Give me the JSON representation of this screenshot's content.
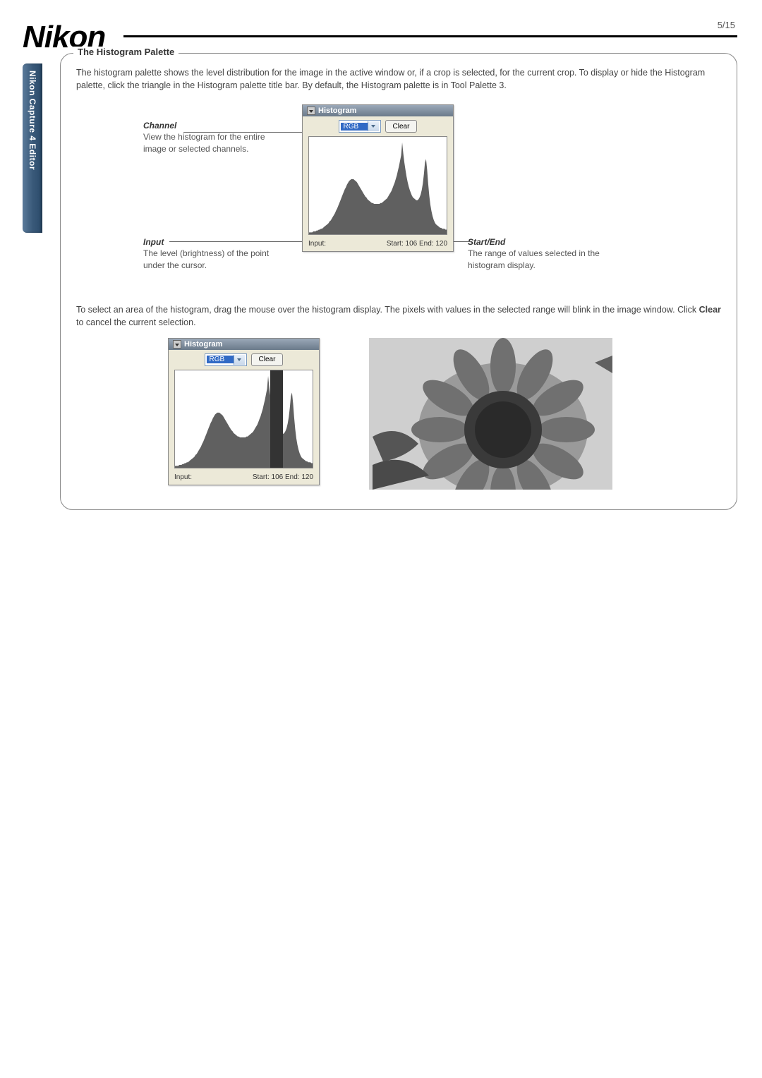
{
  "page": {
    "logo": "Nikon",
    "number": "5/15",
    "sideTab": "Nikon Capture 4 Editor"
  },
  "box": {
    "title": "The Histogram Palette",
    "intro": "The histogram palette shows the level distribution for the image in the active window or, if a crop is selected, for the current crop. To display or hide the Histogram palette, click the triangle in the Histogram palette title bar.  By default, the Histogram palette is in Tool Palette 3.",
    "channel": {
      "title": "Channel",
      "body": "View the histogram for the entire image or selected channels."
    },
    "input": {
      "title": "Input",
      "body": "The level (brightness) of the point under the cursor."
    },
    "startend": {
      "title": "Start/End",
      "body": "The range of values selected in the histogram display."
    },
    "para2": "To select an area of the histogram, drag the mouse over the histogram display.  The pixels with values in the selected range will blink in the image window.  Click ",
    "para2bold": "Clear",
    "para2tail": " to cancel the current selection."
  },
  "histWin": {
    "title": "Histogram",
    "channel": "RGB",
    "clear": "Clear",
    "status": {
      "input": "Input:",
      "range": "Start: 106   End: 120"
    }
  },
  "hist": {
    "bg": "#ffffff",
    "fill": "#606060",
    "values": [
      2,
      2,
      2,
      2,
      3,
      3,
      3,
      4,
      4,
      5,
      5,
      6,
      6,
      7,
      8,
      9,
      10,
      11,
      12,
      14,
      15,
      17,
      19,
      21,
      23,
      26,
      28,
      31,
      34,
      37,
      40,
      43,
      46,
      49,
      51,
      54,
      56,
      58,
      59,
      60,
      60,
      60,
      59,
      58,
      57,
      55,
      53,
      51,
      49,
      47,
      45,
      43,
      41,
      40,
      38,
      37,
      36,
      35,
      34,
      34,
      33,
      33,
      33,
      33,
      33,
      33,
      34,
      34,
      35,
      36,
      37,
      38,
      39,
      41,
      43,
      45,
      47,
      50,
      53,
      56,
      60,
      64,
      69,
      74,
      80,
      86,
      100,
      88,
      78,
      70,
      63,
      57,
      52,
      48,
      45,
      42,
      40,
      39,
      38,
      37,
      37,
      38,
      40,
      43,
      48,
      55,
      65,
      78,
      82,
      70,
      55,
      42,
      32,
      25,
      20,
      16,
      13,
      11,
      10,
      9,
      8,
      7,
      7,
      6,
      6,
      6,
      5,
      5
    ]
  },
  "selection": {
    "startPx": 135,
    "widthPx": 18
  },
  "colors": {
    "boxBorder": "#888888",
    "text": "#444444"
  }
}
